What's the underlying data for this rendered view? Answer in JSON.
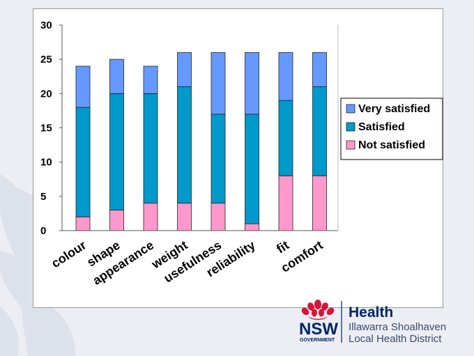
{
  "chart_data": {
    "type": "stacked-bar",
    "categories": [
      "colour",
      "shape",
      "appearance",
      "weight",
      "usefulness",
      "reliability",
      "fit",
      "comfort"
    ],
    "series": [
      {
        "name": "Not satisfied",
        "color": "#ff99cc",
        "values": [
          2,
          3,
          4,
          4,
          4,
          1,
          8,
          8
        ]
      },
      {
        "name": "Satisfied",
        "color": "#0099cc",
        "values": [
          16,
          17,
          16,
          17,
          13,
          16,
          11,
          13
        ]
      },
      {
        "name": "Very satisfied",
        "color": "#6699ff",
        "values": [
          6,
          5,
          4,
          5,
          9,
          9,
          7,
          5
        ]
      }
    ],
    "yticks": [
      "0",
      "5",
      "10",
      "15",
      "20",
      "25",
      "30"
    ],
    "ylim": [
      0,
      30
    ],
    "legend_order": [
      "Very satisfied",
      "Satisfied",
      "Not satisfied"
    ],
    "legend_position": "right",
    "grid": false
  },
  "branding": {
    "org_name": "NSW",
    "org_sub": "GOVERNMENT",
    "dept": "Health",
    "district_line1": "Illawarra Shoalhaven",
    "district_line2": "Local Health District"
  },
  "colors": {
    "bar_outline": "#222222",
    "axis": "#555555",
    "logo_red": "#d7153a",
    "logo_navy": "#002664",
    "logo_grey": "#3a4a6b"
  }
}
